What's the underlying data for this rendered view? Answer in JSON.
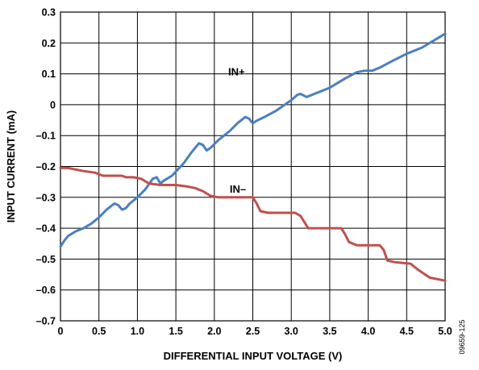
{
  "chart_data": {
    "type": "line",
    "xlabel": "DIFFERENTIAL INPUT VOLTAGE (V)",
    "ylabel": "INPUT CURRENT (mA)",
    "xlim": [
      0,
      5.0
    ],
    "ylim": [
      -0.7,
      0.3
    ],
    "x_ticks": [
      0,
      0.5,
      1.0,
      1.5,
      2.0,
      2.5,
      3.0,
      3.5,
      4.0,
      4.5,
      5.0
    ],
    "x_tick_labels": [
      "0",
      "0.5",
      "1.0",
      "1.5",
      "2.0",
      "2.5",
      "3.0",
      "3.5",
      "4.0",
      "4.5",
      "5.0"
    ],
    "y_ticks": [
      0.3,
      0.2,
      0.1,
      0,
      -0.1,
      -0.2,
      -0.3,
      -0.4,
      -0.5,
      -0.6,
      -0.7
    ],
    "y_tick_labels": [
      "0.3",
      "0.2",
      "0.1",
      "0",
      "–0.1",
      "–0.2",
      "–0.3",
      "–0.4",
      "–0.5",
      "–0.6",
      "–0.7"
    ],
    "grid": true,
    "series": [
      {
        "name": "IN+",
        "color": "#4a7fc0",
        "label_at": [
          2.18,
          0.095
        ],
        "points": [
          [
            0.0,
            -0.46
          ],
          [
            0.05,
            -0.44
          ],
          [
            0.1,
            -0.425
          ],
          [
            0.2,
            -0.41
          ],
          [
            0.3,
            -0.4
          ],
          [
            0.4,
            -0.385
          ],
          [
            0.5,
            -0.365
          ],
          [
            0.6,
            -0.34
          ],
          [
            0.7,
            -0.32
          ],
          [
            0.75,
            -0.325
          ],
          [
            0.8,
            -0.34
          ],
          [
            0.85,
            -0.335
          ],
          [
            0.9,
            -0.32
          ],
          [
            1.0,
            -0.3
          ],
          [
            1.1,
            -0.275
          ],
          [
            1.2,
            -0.24
          ],
          [
            1.25,
            -0.235
          ],
          [
            1.3,
            -0.255
          ],
          [
            1.35,
            -0.245
          ],
          [
            1.45,
            -0.23
          ],
          [
            1.6,
            -0.19
          ],
          [
            1.7,
            -0.155
          ],
          [
            1.8,
            -0.125
          ],
          [
            1.85,
            -0.13
          ],
          [
            1.9,
            -0.148
          ],
          [
            1.95,
            -0.14
          ],
          [
            2.05,
            -0.115
          ],
          [
            2.2,
            -0.085
          ],
          [
            2.3,
            -0.06
          ],
          [
            2.4,
            -0.04
          ],
          [
            2.45,
            -0.045
          ],
          [
            2.5,
            -0.06
          ],
          [
            2.55,
            -0.052
          ],
          [
            2.65,
            -0.04
          ],
          [
            2.8,
            -0.02
          ],
          [
            3.0,
            0.015
          ],
          [
            3.08,
            0.032
          ],
          [
            3.12,
            0.035
          ],
          [
            3.2,
            0.025
          ],
          [
            3.3,
            0.035
          ],
          [
            3.5,
            0.055
          ],
          [
            3.7,
            0.085
          ],
          [
            3.85,
            0.105
          ],
          [
            3.95,
            0.11
          ],
          [
            4.05,
            0.11
          ],
          [
            4.15,
            0.12
          ],
          [
            4.3,
            0.14
          ],
          [
            4.5,
            0.165
          ],
          [
            4.7,
            0.185
          ],
          [
            4.9,
            0.215
          ],
          [
            5.0,
            0.23
          ]
        ]
      },
      {
        "name": "IN–",
        "color": "#c0504d",
        "label_at": [
          2.2,
          -0.285
        ],
        "points": [
          [
            0.0,
            -0.205
          ],
          [
            0.1,
            -0.205
          ],
          [
            0.2,
            -0.21
          ],
          [
            0.3,
            -0.215
          ],
          [
            0.45,
            -0.22
          ],
          [
            0.55,
            -0.23
          ],
          [
            0.7,
            -0.23
          ],
          [
            0.8,
            -0.23
          ],
          [
            0.85,
            -0.235
          ],
          [
            0.95,
            -0.235
          ],
          [
            1.05,
            -0.24
          ],
          [
            1.15,
            -0.255
          ],
          [
            1.3,
            -0.26
          ],
          [
            1.5,
            -0.26
          ],
          [
            1.65,
            -0.265
          ],
          [
            1.75,
            -0.27
          ],
          [
            1.85,
            -0.28
          ],
          [
            1.95,
            -0.295
          ],
          [
            2.05,
            -0.3
          ],
          [
            2.4,
            -0.3
          ],
          [
            2.5,
            -0.3
          ],
          [
            2.55,
            -0.32
          ],
          [
            2.6,
            -0.345
          ],
          [
            2.7,
            -0.35
          ],
          [
            2.9,
            -0.35
          ],
          [
            3.05,
            -0.35
          ],
          [
            3.12,
            -0.36
          ],
          [
            3.17,
            -0.38
          ],
          [
            3.22,
            -0.4
          ],
          [
            3.35,
            -0.4
          ],
          [
            3.55,
            -0.4
          ],
          [
            3.65,
            -0.4
          ],
          [
            3.7,
            -0.42
          ],
          [
            3.75,
            -0.445
          ],
          [
            3.85,
            -0.455
          ],
          [
            4.0,
            -0.455
          ],
          [
            4.15,
            -0.455
          ],
          [
            4.2,
            -0.47
          ],
          [
            4.25,
            -0.505
          ],
          [
            4.35,
            -0.51
          ],
          [
            4.55,
            -0.515
          ],
          [
            4.65,
            -0.535
          ],
          [
            4.8,
            -0.56
          ],
          [
            4.9,
            -0.565
          ],
          [
            5.0,
            -0.57
          ]
        ]
      }
    ]
  },
  "figure_code": "09659-125"
}
